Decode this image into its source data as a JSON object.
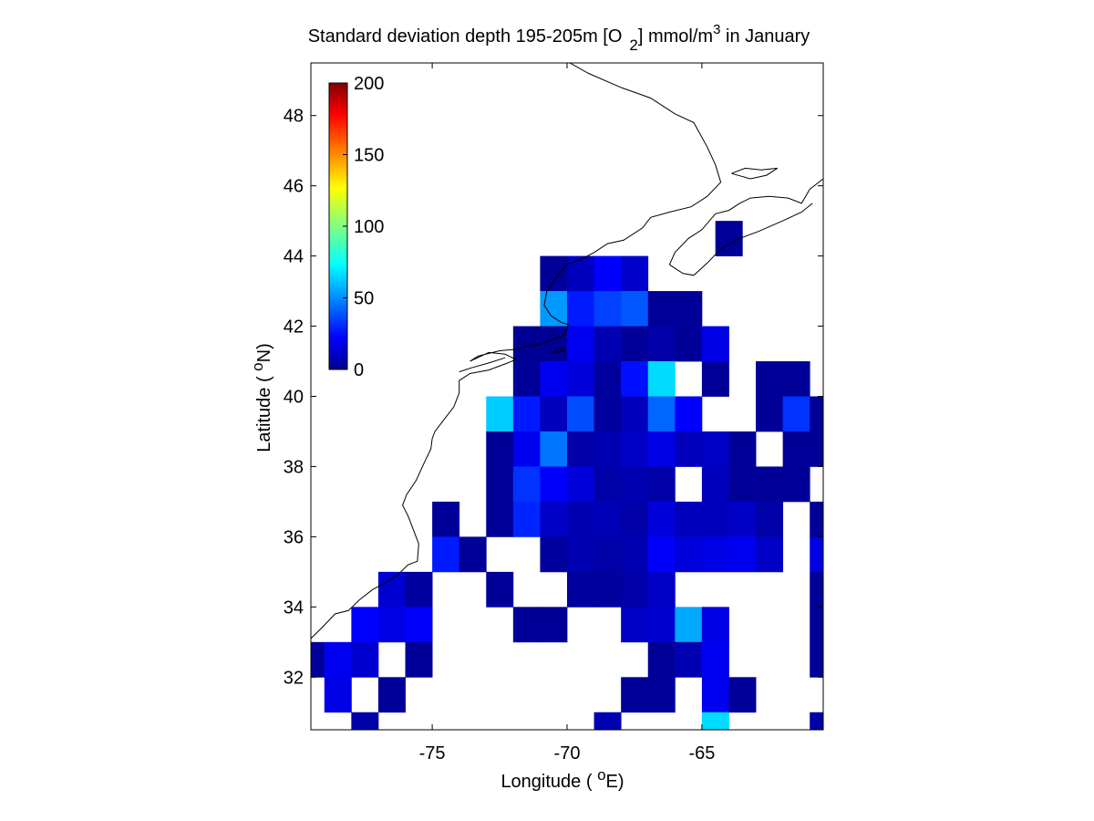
{
  "chart_data": {
    "type": "heatmap",
    "title_parts": {
      "pre": "Standard deviation depth 195-205m [O",
      "sub": "2",
      "mid": "] mmol/m",
      "sup": "3",
      "post": " in January"
    },
    "xlabel_parts": {
      "pre": "Longitude ( ",
      "sup": "o",
      "post": "E)"
    },
    "ylabel_parts": {
      "pre": "Latitude ( ",
      "sup": "o",
      "post": "N)"
    },
    "xlim": [
      -79.5,
      -60.5
    ],
    "ylim": [
      30.5,
      49.5
    ],
    "xticks": [
      -75,
      -70,
      -65
    ],
    "xtick_labels": [
      "-75",
      "-70",
      "-65"
    ],
    "yticks": [
      32,
      34,
      36,
      38,
      40,
      42,
      44,
      46,
      48
    ],
    "ytick_labels": [
      "32",
      "34",
      "36",
      "38",
      "40",
      "42",
      "44",
      "46",
      "48"
    ],
    "colorbar": {
      "colormap": "jet",
      "range": [
        0,
        200
      ],
      "ticks": [
        0,
        50,
        100,
        150,
        200
      ],
      "tick_labels": [
        "0",
        "50",
        "100",
        "150",
        "200"
      ],
      "placement": "inside top-left"
    },
    "cell_size_deg": 1,
    "grid": false,
    "cells_note": "each cell: [longitude_center, latitude_center, value]",
    "cells": [
      [
        -64,
        44.5,
        5
      ],
      [
        -70.5,
        43.5,
        5
      ],
      [
        -69.5,
        43.5,
        12
      ],
      [
        -68.5,
        43.5,
        25
      ],
      [
        -67.5,
        43.5,
        15
      ],
      [
        -70.5,
        42.5,
        55
      ],
      [
        -69.5,
        42.5,
        30
      ],
      [
        -68.5,
        42.5,
        38
      ],
      [
        -67.5,
        42.5,
        42
      ],
      [
        -66.5,
        42.5,
        5
      ],
      [
        -65.5,
        42.5,
        5
      ],
      [
        -71.5,
        41.5,
        4
      ],
      [
        -70.5,
        41.5,
        4
      ],
      [
        -69.5,
        41.5,
        22
      ],
      [
        -68.5,
        41.5,
        10
      ],
      [
        -67.5,
        41.5,
        5
      ],
      [
        -66.5,
        41.5,
        8
      ],
      [
        -65.5,
        41.5,
        5
      ],
      [
        -64.5,
        41.5,
        20
      ],
      [
        -71.5,
        40.5,
        5
      ],
      [
        -70.5,
        40.5,
        22
      ],
      [
        -69.5,
        40.5,
        18
      ],
      [
        -68.5,
        40.5,
        6
      ],
      [
        -67.5,
        40.5,
        28
      ],
      [
        -66.5,
        40.5,
        68
      ],
      [
        -64.5,
        40.5,
        5
      ],
      [
        -62.5,
        40.5,
        5
      ],
      [
        -61.5,
        40.5,
        5
      ],
      [
        -72.5,
        39.5,
        65
      ],
      [
        -71.5,
        39.5,
        30
      ],
      [
        -70.5,
        39.5,
        12
      ],
      [
        -69.5,
        39.5,
        40
      ],
      [
        -68.5,
        39.5,
        6
      ],
      [
        -67.5,
        39.5,
        12
      ],
      [
        -66.5,
        39.5,
        45
      ],
      [
        -65.5,
        39.5,
        25
      ],
      [
        -62.5,
        39.5,
        5
      ],
      [
        -61.5,
        39.5,
        35
      ],
      [
        -60.5,
        39.5,
        5
      ],
      [
        -72.5,
        38.5,
        5
      ],
      [
        -71.5,
        38.5,
        22
      ],
      [
        -70.5,
        38.5,
        48
      ],
      [
        -69.5,
        38.5,
        8
      ],
      [
        -68.5,
        38.5,
        10
      ],
      [
        -67.5,
        38.5,
        14
      ],
      [
        -66.5,
        38.5,
        20
      ],
      [
        -65.5,
        38.5,
        12
      ],
      [
        -64.5,
        38.5,
        14
      ],
      [
        -63.5,
        38.5,
        5
      ],
      [
        -61.5,
        38.5,
        5
      ],
      [
        -60.5,
        38.5,
        5
      ],
      [
        -72.5,
        37.5,
        5
      ],
      [
        -71.5,
        37.5,
        35
      ],
      [
        -70.5,
        37.5,
        24
      ],
      [
        -69.5,
        37.5,
        18
      ],
      [
        -68.5,
        37.5,
        8
      ],
      [
        -67.5,
        37.5,
        10
      ],
      [
        -66.5,
        37.5,
        8
      ],
      [
        -64.5,
        37.5,
        12
      ],
      [
        -63.5,
        37.5,
        5
      ],
      [
        -62.5,
        37.5,
        5
      ],
      [
        -61.5,
        37.5,
        5
      ],
      [
        -74.5,
        36.5,
        5
      ],
      [
        -72.5,
        36.5,
        5
      ],
      [
        -71.5,
        36.5,
        32
      ],
      [
        -70.5,
        36.5,
        14
      ],
      [
        -69.5,
        36.5,
        10
      ],
      [
        -68.5,
        36.5,
        11
      ],
      [
        -67.5,
        36.5,
        8
      ],
      [
        -66.5,
        36.5,
        18
      ],
      [
        -65.5,
        36.5,
        12
      ],
      [
        -64.5,
        36.5,
        12
      ],
      [
        -63.5,
        36.5,
        14
      ],
      [
        -62.5,
        36.5,
        8
      ],
      [
        -60.5,
        36.5,
        5
      ],
      [
        -74.5,
        35.5,
        30
      ],
      [
        -73.5,
        35.5,
        5
      ],
      [
        -70.5,
        35.5,
        6
      ],
      [
        -69.5,
        35.5,
        10
      ],
      [
        -68.5,
        35.5,
        8
      ],
      [
        -67.5,
        35.5,
        10
      ],
      [
        -66.5,
        35.5,
        24
      ],
      [
        -65.5,
        35.5,
        18
      ],
      [
        -64.5,
        35.5,
        20
      ],
      [
        -63.5,
        35.5,
        22
      ],
      [
        -62.5,
        35.5,
        14
      ],
      [
        -60.5,
        35.5,
        20
      ],
      [
        -76.5,
        34.5,
        16
      ],
      [
        -75.5,
        34.5,
        6
      ],
      [
        -72.5,
        34.5,
        5
      ],
      [
        -69.5,
        34.5,
        6
      ],
      [
        -68.5,
        34.5,
        6
      ],
      [
        -67.5,
        34.5,
        8
      ],
      [
        -66.5,
        34.5,
        14
      ],
      [
        -60.5,
        34.5,
        5
      ],
      [
        -77.5,
        33.5,
        25
      ],
      [
        -76.5,
        33.5,
        20
      ],
      [
        -75.5,
        33.5,
        24
      ],
      [
        -71.5,
        33.5,
        5
      ],
      [
        -70.5,
        33.5,
        5
      ],
      [
        -67.5,
        33.5,
        14
      ],
      [
        -66.5,
        33.5,
        16
      ],
      [
        -65.5,
        33.5,
        58
      ],
      [
        -64.5,
        33.5,
        20
      ],
      [
        -60.5,
        33.5,
        5
      ],
      [
        -79.5,
        32.5,
        5
      ],
      [
        -78.5,
        32.5,
        22
      ],
      [
        -77.5,
        32.5,
        16
      ],
      [
        -75.5,
        32.5,
        5
      ],
      [
        -66.5,
        32.5,
        5
      ],
      [
        -65.5,
        32.5,
        10
      ],
      [
        -64.5,
        32.5,
        22
      ],
      [
        -60.5,
        32.5,
        5
      ],
      [
        -78.5,
        31.5,
        20
      ],
      [
        -76.5,
        31.5,
        5
      ],
      [
        -67.5,
        31.5,
        5
      ],
      [
        -66.5,
        31.5,
        5
      ],
      [
        -64.5,
        31.5,
        22
      ],
      [
        -63.5,
        31.5,
        5
      ],
      [
        -77.5,
        30.5,
        8
      ],
      [
        -68.5,
        30.5,
        10
      ],
      [
        -64.5,
        30.5,
        68
      ],
      [
        -60.5,
        30.5,
        8
      ]
    ],
    "coastline_note": "schematic east coast of North America (lon, lat)",
    "coastline": [
      [
        [
          -79.5,
          33.1
        ],
        [
          -79.1,
          33.4
        ],
        [
          -78.6,
          33.8
        ],
        [
          -78.1,
          33.9
        ],
        [
          -77.7,
          34.2
        ],
        [
          -77.2,
          34.5
        ],
        [
          -76.7,
          34.7
        ],
        [
          -76.3,
          34.9
        ],
        [
          -75.9,
          35.2
        ],
        [
          -75.55,
          35.3
        ],
        [
          -75.5,
          35.8
        ],
        [
          -75.7,
          36.2
        ],
        [
          -75.9,
          36.6
        ],
        [
          -76.1,
          36.9
        ],
        [
          -75.95,
          37.2
        ],
        [
          -75.6,
          37.6
        ],
        [
          -75.3,
          38.1
        ],
        [
          -75.05,
          38.5
        ],
        [
          -75.0,
          38.8
        ],
        [
          -74.9,
          39.0
        ],
        [
          -74.6,
          39.3
        ],
        [
          -74.2,
          39.7
        ],
        [
          -74.0,
          40.1
        ],
        [
          -74.0,
          40.45
        ],
        [
          -73.6,
          40.65
        ],
        [
          -72.9,
          40.75
        ],
        [
          -72.2,
          40.95
        ],
        [
          -71.9,
          41.05
        ],
        [
          -72.3,
          41.2
        ],
        [
          -72.9,
          41.25
        ],
        [
          -73.6,
          41.0
        ],
        [
          -73.3,
          41.15
        ],
        [
          -72.5,
          41.3
        ],
        [
          -71.8,
          41.35
        ],
        [
          -71.4,
          41.45
        ],
        [
          -70.95,
          41.5
        ],
        [
          -70.6,
          41.6
        ],
        [
          -70.1,
          41.75
        ],
        [
          -69.95,
          42.05
        ],
        [
          -70.2,
          42.1
        ],
        [
          -70.6,
          42.3
        ],
        [
          -70.85,
          42.6
        ],
        [
          -70.75,
          43.0
        ],
        [
          -70.4,
          43.4
        ],
        [
          -70.0,
          43.75
        ],
        [
          -69.5,
          43.9
        ],
        [
          -69.0,
          44.1
        ],
        [
          -68.5,
          44.35
        ],
        [
          -67.9,
          44.45
        ],
        [
          -67.2,
          44.8
        ],
        [
          -66.9,
          45.1
        ],
        [
          -66.2,
          45.25
        ],
        [
          -65.4,
          45.4
        ],
        [
          -64.8,
          45.7
        ],
        [
          -64.3,
          46.1
        ],
        [
          -64.5,
          46.6
        ],
        [
          -64.8,
          47.1
        ],
        [
          -65.3,
          47.8
        ],
        [
          -66.0,
          48.05
        ],
        [
          -66.9,
          48.5
        ],
        [
          -68.0,
          48.8
        ],
        [
          -69.2,
          49.2
        ],
        [
          -69.9,
          49.5
        ]
      ],
      [
        [
          -66.2,
          43.75
        ],
        [
          -66.0,
          44.1
        ],
        [
          -65.5,
          44.5
        ],
        [
          -65.0,
          44.75
        ],
        [
          -64.5,
          45.2
        ],
        [
          -64.0,
          45.3
        ],
        [
          -63.6,
          45.5
        ],
        [
          -63.2,
          45.65
        ],
        [
          -62.5,
          45.7
        ],
        [
          -61.8,
          45.65
        ],
        [
          -61.3,
          45.5
        ],
        [
          -61.0,
          45.9
        ],
        [
          -60.5,
          46.2
        ]
      ],
      [
        [
          -66.2,
          43.75
        ],
        [
          -65.7,
          43.5
        ],
        [
          -65.3,
          43.45
        ],
        [
          -64.8,
          43.8
        ],
        [
          -64.3,
          44.2
        ],
        [
          -63.6,
          44.5
        ],
        [
          -62.9,
          44.7
        ],
        [
          -62.0,
          45.0
        ],
        [
          -61.3,
          45.25
        ],
        [
          -60.9,
          45.5
        ]
      ],
      [
        [
          -63.9,
          46.35
        ],
        [
          -63.4,
          46.5
        ],
        [
          -62.8,
          46.45
        ],
        [
          -62.2,
          46.5
        ],
        [
          -62.6,
          46.3
        ],
        [
          -63.2,
          46.2
        ],
        [
          -63.9,
          46.35
        ]
      ],
      [
        [
          -70.5,
          41.25
        ],
        [
          -70.1,
          41.3
        ],
        [
          -70.3,
          41.4
        ],
        [
          -70.5,
          41.25
        ]
      ],
      [
        [
          -72.3,
          41.1
        ],
        [
          -72.9,
          40.95
        ],
        [
          -73.6,
          40.8
        ],
        [
          -74.0,
          40.7
        ]
      ]
    ]
  }
}
